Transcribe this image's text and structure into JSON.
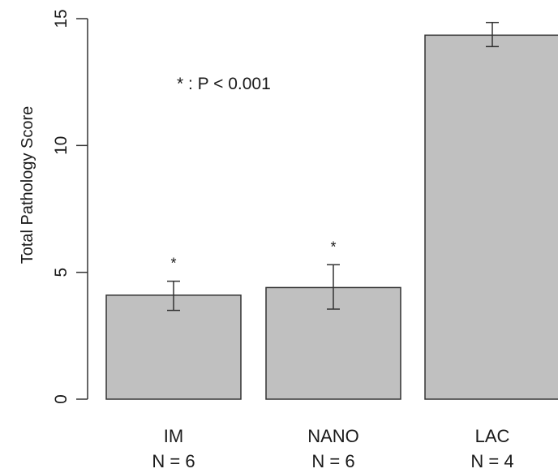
{
  "chart_data": {
    "type": "bar",
    "title": "",
    "xlabel": "",
    "ylabel": "Total Pathology Score",
    "ylim": [
      0,
      15
    ],
    "yticks": [
      0,
      5,
      10,
      15
    ],
    "grid": false,
    "categories": [
      "IM",
      "NANO",
      "LAC"
    ],
    "category_sublabels": [
      "N = 6",
      "N = 6",
      "N = 4"
    ],
    "values": [
      4.1,
      4.4,
      14.35
    ],
    "error_bars": [
      {
        "low": 3.5,
        "high": 4.65
      },
      {
        "low": 3.55,
        "high": 5.3
      },
      {
        "low": 13.9,
        "high": 14.85
      }
    ],
    "significance_markers": [
      "*",
      "*",
      ""
    ],
    "annotation": "* : P < 0.001",
    "bar_color": "#c0c0c0",
    "bar_edge_color": "#333333"
  }
}
